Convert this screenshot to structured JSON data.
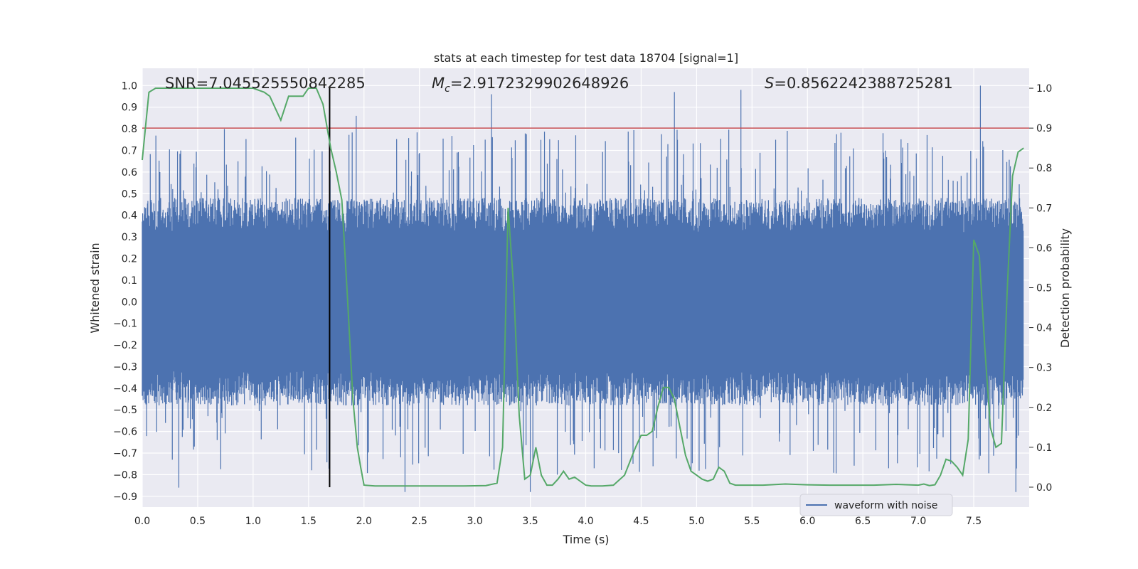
{
  "chart_data": {
    "type": "line",
    "title": "stats at each timestep for test data 18704 [signal=1]",
    "xlabel": "Time (s)",
    "ylabel_left": "Whitened strain",
    "ylabel_right": "Detection probability",
    "xlim": [
      0.0,
      8.0
    ],
    "ylim_left": [
      -0.95,
      1.08
    ],
    "ylim_right": [
      -0.05,
      1.05
    ],
    "xticks": [
      "0.0",
      "0.5",
      "1.0",
      "1.5",
      "2.0",
      "2.5",
      "3.0",
      "3.5",
      "4.0",
      "4.5",
      "5.0",
      "5.5",
      "6.0",
      "6.5",
      "7.0",
      "7.5"
    ],
    "yticks_left": [
      "1.0",
      "0.9",
      "0.8",
      "0.7",
      "0.6",
      "0.5",
      "0.4",
      "0.3",
      "0.2",
      "0.1",
      "0.0",
      "-0.1",
      "-0.2",
      "-0.3",
      "-0.4",
      "-0.5",
      "-0.6",
      "-0.7",
      "-0.8",
      "-0.9"
    ],
    "yticks_right": [
      "1.0",
      "0.9",
      "0.8",
      "0.7",
      "0.6",
      "0.5",
      "0.4",
      "0.3",
      "0.2",
      "0.1",
      "0.0"
    ],
    "annotations": {
      "snr": "SNR=7.045525550842285",
      "mc_symbol": "M",
      "mc_sub": "c",
      "mc_value": "=2.9172329902648926",
      "s_symbol": "S",
      "s_value": "=0.8562242388725281"
    },
    "legend": {
      "label": "waveform with noise",
      "position": "lower right"
    },
    "threshold_probability": 0.9,
    "event_time": 1.69,
    "grid": true,
    "series": [
      {
        "name": "waveform with noise",
        "axis": "left",
        "note": "dense noise-like strain sampled across 0–7.95 s, envelope approx ±0.45 with spikes to ~1.0 and ~-0.88",
        "peaks": [
          {
            "x": 1.93,
            "y": 0.86
          },
          {
            "x": 3.15,
            "y": 0.96
          },
          {
            "x": 4.8,
            "y": 0.97
          },
          {
            "x": 5.4,
            "y": 0.98
          },
          {
            "x": 7.56,
            "y": 1.0
          },
          {
            "x": 2.37,
            "y": -0.88
          },
          {
            "x": 3.5,
            "y": -0.88
          },
          {
            "x": 7.88,
            "y": -0.88
          },
          {
            "x": 0.33,
            "y": -0.86
          }
        ]
      },
      {
        "name": "detection probability",
        "axis": "right",
        "x": [
          0.0,
          0.06,
          0.12,
          0.25,
          0.5,
          0.75,
          1.0,
          1.1,
          1.15,
          1.2,
          1.25,
          1.32,
          1.4,
          1.45,
          1.5,
          1.57,
          1.63,
          1.7,
          1.75,
          1.8,
          1.85,
          1.9,
          1.94,
          1.97,
          2.0,
          2.1,
          2.3,
          2.5,
          2.7,
          2.9,
          3.1,
          3.2,
          3.25,
          3.3,
          3.35,
          3.4,
          3.45,
          3.5,
          3.55,
          3.6,
          3.65,
          3.7,
          3.75,
          3.8,
          3.85,
          3.9,
          3.95,
          4.0,
          4.05,
          4.15,
          4.25,
          4.35,
          4.45,
          4.5,
          4.55,
          4.6,
          4.65,
          4.7,
          4.75,
          4.8,
          4.85,
          4.9,
          4.95,
          5.0,
          5.05,
          5.1,
          5.15,
          5.2,
          5.25,
          5.3,
          5.35,
          5.4,
          5.5,
          5.6,
          5.8,
          6.0,
          6.2,
          6.4,
          6.6,
          6.8,
          7.0,
          7.05,
          7.1,
          7.15,
          7.2,
          7.25,
          7.3,
          7.35,
          7.4,
          7.45,
          7.5,
          7.55,
          7.6,
          7.65,
          7.7,
          7.75,
          7.8,
          7.85,
          7.9,
          7.95
        ],
        "y": [
          0.82,
          0.99,
          1.0,
          1.0,
          1.0,
          1.0,
          1.0,
          0.99,
          0.98,
          0.95,
          0.92,
          0.98,
          0.98,
          0.98,
          1.0,
          1.0,
          0.96,
          0.85,
          0.79,
          0.72,
          0.48,
          0.22,
          0.1,
          0.05,
          0.005,
          0.003,
          0.003,
          0.003,
          0.003,
          0.003,
          0.004,
          0.01,
          0.1,
          0.7,
          0.5,
          0.18,
          0.02,
          0.03,
          0.1,
          0.03,
          0.005,
          0.005,
          0.02,
          0.04,
          0.02,
          0.025,
          0.015,
          0.005,
          0.003,
          0.003,
          0.005,
          0.03,
          0.1,
          0.13,
          0.13,
          0.14,
          0.2,
          0.25,
          0.25,
          0.22,
          0.15,
          0.08,
          0.04,
          0.03,
          0.02,
          0.015,
          0.02,
          0.05,
          0.04,
          0.01,
          0.005,
          0.005,
          0.005,
          0.005,
          0.008,
          0.006,
          0.005,
          0.005,
          0.005,
          0.007,
          0.005,
          0.008,
          0.004,
          0.006,
          0.03,
          0.07,
          0.065,
          0.05,
          0.03,
          0.12,
          0.62,
          0.58,
          0.35,
          0.15,
          0.1,
          0.11,
          0.48,
          0.78,
          0.84,
          0.85
        ]
      }
    ]
  }
}
